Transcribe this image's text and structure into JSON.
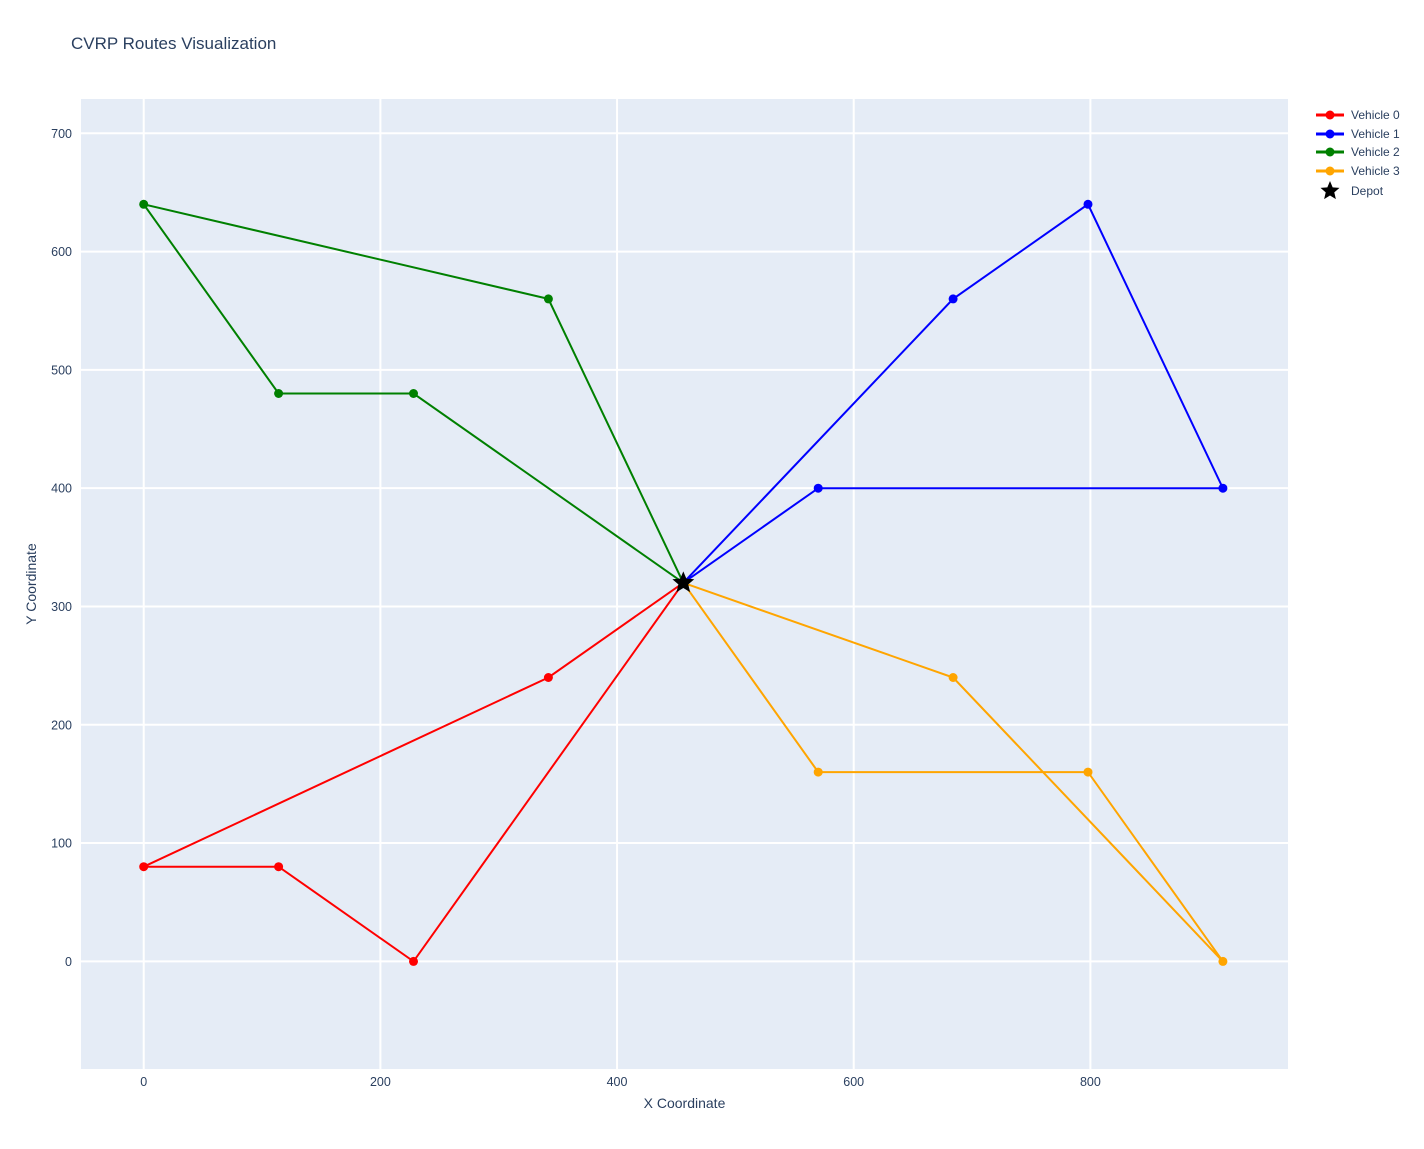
{
  "title": "CVRP Routes Visualization",
  "chart_data": {
    "type": "line",
    "title": "CVRP Routes Visualization",
    "xlabel": "X Coordinate",
    "ylabel": "Y Coordinate",
    "x_ticks": [
      0,
      200,
      400,
      600,
      800
    ],
    "y_ticks": [
      0,
      100,
      200,
      300,
      400,
      500,
      600,
      700
    ],
    "x_range": [
      -53,
      967
    ],
    "y_range": [
      -91,
      729
    ],
    "grid": true,
    "legend_position": "top-right-outside",
    "plot_bg_color": "#e5ecf6",
    "grid_color": "#ffffff",
    "text_color": "#2a3f5f",
    "depot": {
      "label": "Depot",
      "x": 456,
      "y": 320,
      "color": "#000000",
      "symbol": "star"
    },
    "series": [
      {
        "name": "Vehicle 0",
        "color": "#ff0000",
        "points": [
          [
            456,
            320
          ],
          [
            342,
            240
          ],
          [
            0,
            80
          ],
          [
            114,
            80
          ],
          [
            228,
            0
          ],
          [
            456,
            320
          ]
        ]
      },
      {
        "name": "Vehicle 1",
        "color": "#0000ff",
        "points": [
          [
            456,
            320
          ],
          [
            570,
            400
          ],
          [
            912,
            400
          ],
          [
            798,
            640
          ],
          [
            684,
            560
          ],
          [
            456,
            320
          ]
        ]
      },
      {
        "name": "Vehicle 2",
        "color": "#008000",
        "points": [
          [
            456,
            320
          ],
          [
            228,
            480
          ],
          [
            114,
            480
          ],
          [
            0,
            640
          ],
          [
            342,
            560
          ],
          [
            456,
            320
          ]
        ]
      },
      {
        "name": "Vehicle 3",
        "color": "#ffa500",
        "points": [
          [
            456,
            320
          ],
          [
            570,
            160
          ],
          [
            798,
            160
          ],
          [
            912,
            0
          ],
          [
            684,
            240
          ],
          [
            456,
            320
          ]
        ]
      }
    ]
  }
}
